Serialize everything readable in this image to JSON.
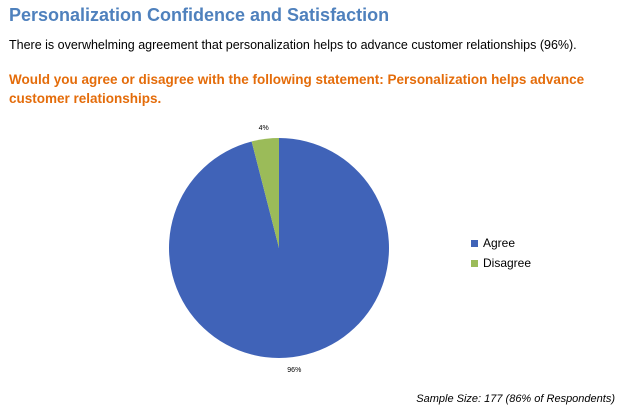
{
  "header": {
    "title": "Personalization Confidence and Satisfaction",
    "summary": "There is overwhelming agreement that personalization helps to advance customer relationships (96%).",
    "question": "Would you agree or disagree with the following statement:   Personalization helps advance customer relationships."
  },
  "chart_data": {
    "type": "pie",
    "categories": [
      "Agree",
      "Disagree"
    ],
    "values": [
      96,
      4
    ],
    "data_labels": [
      "96%",
      "4%"
    ],
    "colors": [
      "#4063b8",
      "#9bbb59"
    ],
    "legend_position": "right"
  },
  "footer": {
    "sample_size": "Sample Size: 177 (86% of Respondents)"
  }
}
